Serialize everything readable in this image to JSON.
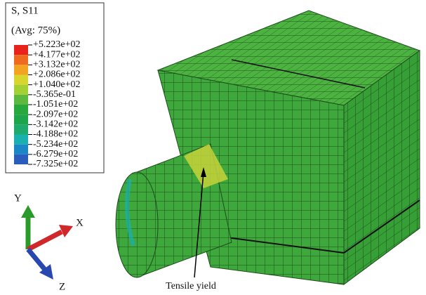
{
  "legend": {
    "title": "S, S11",
    "subtitle": "(Avg: 75%)",
    "labels": [
      "+5.223e+02",
      "+4.177e+02",
      "+3.132e+02",
      "+2.086e+02",
      "+1.040e+02",
      "-5.365e-01",
      "-1.051e+02",
      "-2.097e+02",
      "-3.142e+02",
      "-4.188e+02",
      "-5.234e+02",
      "-6.279e+02",
      "-7.325e+02"
    ],
    "colors": [
      "#e8231b",
      "#ee6a1e",
      "#f4a222",
      "#d8d62c",
      "#a4d033",
      "#5cb940",
      "#27a83c",
      "#1ea44a",
      "#1eaa6c",
      "#1ab0b0",
      "#1a86c8",
      "#2a5cbc",
      "#2b3fa8"
    ]
  },
  "triad": {
    "y": "Y",
    "x": "X",
    "z": "Z"
  },
  "annotation": "Tensile yield"
}
